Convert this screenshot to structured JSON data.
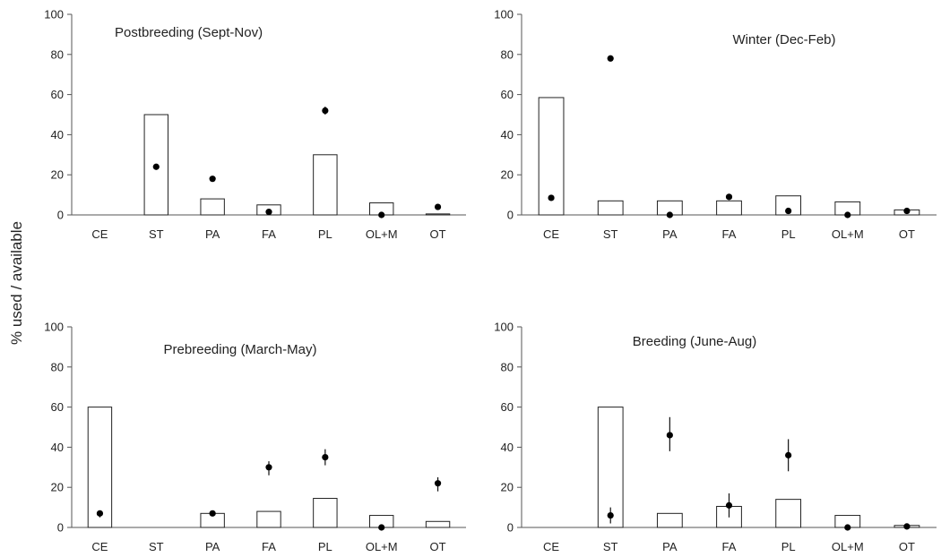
{
  "ylabel": "% used / available",
  "chart_data": [
    {
      "type": "bar",
      "title": "Postbreeding (Sept-Nov)",
      "categories": [
        "CE",
        "ST",
        "PA",
        "FA",
        "PL",
        "OL+M",
        "OT"
      ],
      "ylim": [
        0,
        100
      ],
      "yticks": [
        0,
        20,
        40,
        60,
        80,
        100
      ],
      "series": [
        {
          "kind": "bar",
          "values": [
            0,
            50,
            8,
            5,
            30,
            6,
            0.5
          ]
        },
        {
          "kind": "point",
          "values": [
            null,
            24,
            18,
            1.5,
            52,
            0,
            4
          ],
          "err_low": [
            null,
            23,
            18,
            1,
            50,
            0,
            4
          ],
          "err_high": [
            null,
            25,
            18,
            2,
            54,
            0,
            4
          ]
        }
      ]
    },
    {
      "type": "bar",
      "title": "Winter (Dec-Feb)",
      "categories": [
        "CE",
        "ST",
        "PA",
        "FA",
        "PL",
        "OL+M",
        "OT"
      ],
      "ylim": [
        0,
        100
      ],
      "yticks": [
        0,
        20,
        40,
        60,
        80,
        100
      ],
      "series": [
        {
          "kind": "bar",
          "values": [
            58.5,
            7,
            7,
            7,
            9.5,
            6.5,
            2.5
          ]
        },
        {
          "kind": "point",
          "values": [
            8.5,
            78,
            0,
            9,
            2,
            0,
            2
          ],
          "err_low": [
            8.5,
            78,
            0,
            9,
            2,
            0,
            2
          ],
          "err_high": [
            8.5,
            78,
            0,
            9,
            2,
            0,
            2
          ]
        }
      ]
    },
    {
      "type": "bar",
      "title": "Prebreeding (March-May)",
      "categories": [
        "CE",
        "ST",
        "PA",
        "FA",
        "PL",
        "OL+M",
        "OT"
      ],
      "ylim": [
        0,
        100
      ],
      "yticks": [
        0,
        20,
        40,
        60,
        80,
        100
      ],
      "series": [
        {
          "kind": "bar",
          "values": [
            60,
            0,
            7,
            8,
            14.5,
            6,
            3
          ]
        },
        {
          "kind": "point",
          "values": [
            7,
            null,
            7,
            30,
            35,
            0,
            22
          ],
          "err_low": [
            5,
            null,
            6,
            26,
            31,
            0,
            18
          ],
          "err_high": [
            8,
            null,
            8,
            33,
            39,
            0,
            25
          ]
        }
      ]
    },
    {
      "type": "bar",
      "title": "Breeding (June-Aug)",
      "categories": [
        "CE",
        "ST",
        "PA",
        "FA",
        "PL",
        "OL+M",
        "OT"
      ],
      "ylim": [
        0,
        100
      ],
      "yticks": [
        0,
        20,
        40,
        60,
        80,
        100
      ],
      "series": [
        {
          "kind": "bar",
          "values": [
            0,
            60,
            7,
            10.5,
            14,
            6,
            1
          ]
        },
        {
          "kind": "point",
          "values": [
            null,
            6,
            46,
            11,
            36,
            0,
            0.5
          ],
          "err_low": [
            null,
            2,
            38,
            5,
            28,
            0,
            0.5
          ],
          "err_high": [
            null,
            10,
            55,
            17,
            44,
            0,
            0.5
          ]
        }
      ]
    }
  ]
}
